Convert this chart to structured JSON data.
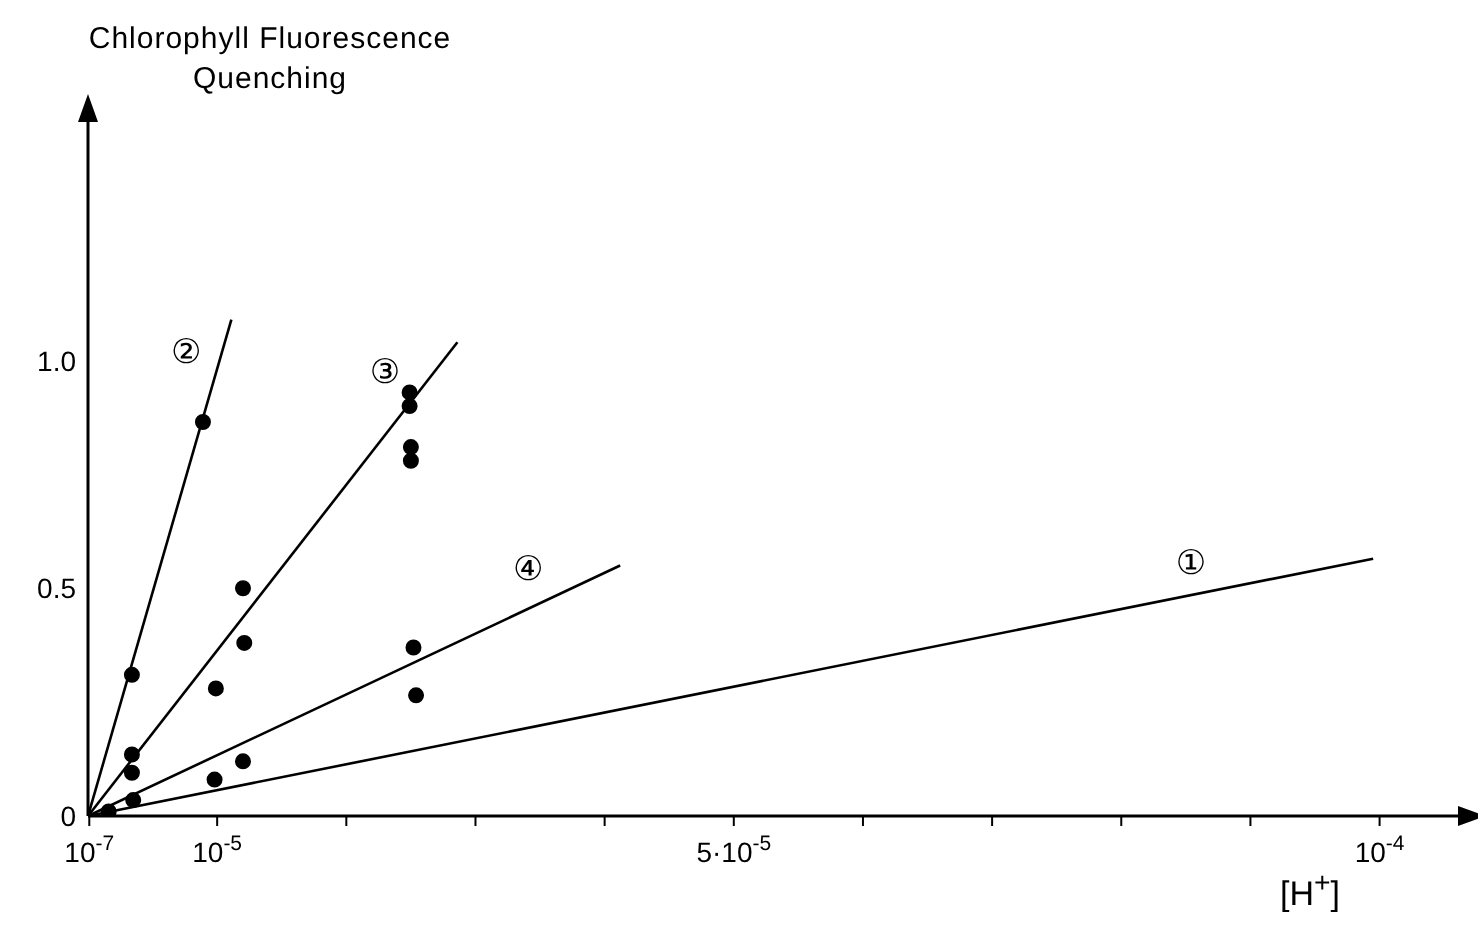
{
  "chart_data": {
    "type": "scatter",
    "ylabel": "Chlorophyll Fluorescence Quenching",
    "xlabel": "[H$^{+}$]",
    "xlim": [
      0,
      0.000107
    ],
    "ylim": [
      0,
      1.55
    ],
    "xticks": [
      {
        "value": 1e-07,
        "label": "10$^{-7}$"
      },
      {
        "value": 1e-05,
        "label": "10$^{-5}$"
      },
      {
        "value": 2e-05,
        "label": null
      },
      {
        "value": 3e-05,
        "label": null
      },
      {
        "value": 4e-05,
        "label": null
      },
      {
        "value": 5e-05,
        "label": "5·10$^{-5}$"
      },
      {
        "value": 6e-05,
        "label": null
      },
      {
        "value": 7e-05,
        "label": null
      },
      {
        "value": 8e-05,
        "label": null
      },
      {
        "value": 9e-05,
        "label": null
      },
      {
        "value": 0.0001,
        "label": "10$^{-4}$"
      }
    ],
    "yticks": [
      0,
      0.5,
      {
        "value": 1,
        "label": "1.0"
      }
    ],
    "marker": "circle",
    "series": [
      {
        "type": "line",
        "name": "①",
        "color": "#000000",
        "marker": "none",
        "x": [
          0,
          9.95e-05
        ],
        "values": [
          0,
          0.565
        ]
      },
      {
        "type": "line",
        "name": "②",
        "color": "#000000",
        "marker": "none",
        "x": [
          0,
          1.11e-05
        ],
        "values": [
          0,
          1.09
        ]
      },
      {
        "type": "line",
        "name": "③",
        "color": "#000000",
        "marker": "none",
        "x": [
          0,
          2.86e-05
        ],
        "values": [
          0,
          1.04
        ]
      },
      {
        "type": "line",
        "name": "④",
        "color": "#000000",
        "marker": "none",
        "x": [
          0,
          4.12e-05
        ],
        "values": [
          0,
          0.55
        ]
      },
      {
        "color": "#000000",
        "x": [
          3.4e-06,
          8.9e-06
        ],
        "values": [
          0.31,
          0.865
        ]
      },
      {
        "color": "#000000",
        "x": [
          3.4e-06,
          3.4e-06,
          9.9e-06,
          1.2e-05,
          1.21e-05,
          2.49e-05,
          2.49e-05,
          2.5e-05,
          2.5e-05
        ],
        "values": [
          0.135,
          0.095,
          0.28,
          0.5,
          0.38,
          0.93,
          0.9,
          0.81,
          0.78
        ]
      },
      {
        "color": "#000000",
        "x": [
          1.6e-06,
          3.5e-06,
          9.8e-06,
          1.2e-05,
          2.52e-05,
          2.54e-05
        ],
        "values": [
          0.01,
          0.035,
          0.08,
          0.12,
          0.37,
          0.265
        ]
      }
    ]
  }
}
